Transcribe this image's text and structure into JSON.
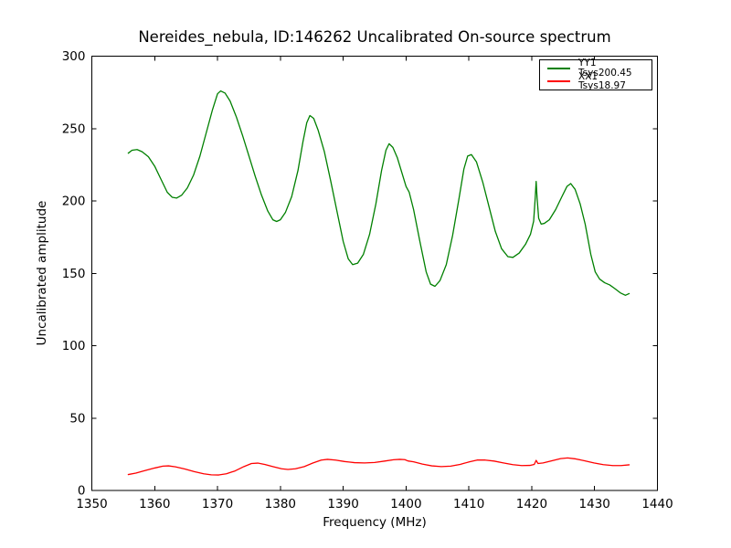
{
  "figure": {
    "background": "#ffffff"
  },
  "chart_data": {
    "type": "line",
    "title": "Nereides_nebula, ID:146262 Uncalibrated On-source spectrum",
    "xlabel": "Frequency (MHz)",
    "ylabel": "Uncalibrated amplitude",
    "xlim": [
      1350,
      1440
    ],
    "ylim": [
      0,
      300
    ],
    "xticks": [
      1350,
      1360,
      1370,
      1380,
      1390,
      1400,
      1410,
      1420,
      1430,
      1440
    ],
    "yticks": [
      0,
      50,
      100,
      150,
      200,
      250,
      300
    ],
    "grid": false,
    "frame_color": "#000000",
    "legend": {
      "position": "upper right",
      "entries": [
        {
          "label": "YY1 Tsys200.45",
          "color": "#008000"
        },
        {
          "label": "XX1 Tsys18.97",
          "color": "#ff0000"
        }
      ]
    },
    "series": [
      {
        "name": "YY1 Tsys200.45",
        "color": "#008000",
        "points": [
          [
            1355.8,
            233
          ],
          [
            1356.4,
            235
          ],
          [
            1357.2,
            235.5
          ],
          [
            1358,
            234
          ],
          [
            1359,
            230.5
          ],
          [
            1360,
            224
          ],
          [
            1361,
            215
          ],
          [
            1362,
            206
          ],
          [
            1362.8,
            202.5
          ],
          [
            1363.5,
            202
          ],
          [
            1364.3,
            204
          ],
          [
            1365.2,
            209
          ],
          [
            1366.2,
            218
          ],
          [
            1367.2,
            231
          ],
          [
            1368.2,
            247
          ],
          [
            1369.2,
            263
          ],
          [
            1370,
            274
          ],
          [
            1370.5,
            276
          ],
          [
            1371.2,
            274.5
          ],
          [
            1372,
            269
          ],
          [
            1373,
            258
          ],
          [
            1374,
            245
          ],
          [
            1375,
            231
          ],
          [
            1376,
            217
          ],
          [
            1377,
            204
          ],
          [
            1378,
            193
          ],
          [
            1378.8,
            187
          ],
          [
            1379.4,
            185.8
          ],
          [
            1380,
            187
          ],
          [
            1380.8,
            192
          ],
          [
            1381.8,
            203
          ],
          [
            1382.8,
            221
          ],
          [
            1383.6,
            241
          ],
          [
            1384.2,
            254
          ],
          [
            1384.7,
            259
          ],
          [
            1385.3,
            257
          ],
          [
            1386,
            249
          ],
          [
            1387,
            234
          ],
          [
            1388,
            214
          ],
          [
            1389,
            193
          ],
          [
            1390,
            172
          ],
          [
            1390.8,
            160
          ],
          [
            1391.5,
            156
          ],
          [
            1392.3,
            157
          ],
          [
            1393.2,
            163
          ],
          [
            1394.2,
            177
          ],
          [
            1395.2,
            198
          ],
          [
            1396.1,
            221
          ],
          [
            1396.8,
            235
          ],
          [
            1397.3,
            239.5
          ],
          [
            1397.9,
            237
          ],
          [
            1398.6,
            230
          ],
          [
            1399.3,
            220
          ],
          [
            1400,
            210
          ],
          [
            1400.5,
            206
          ],
          [
            1401.2,
            194
          ],
          [
            1402.2,
            172
          ],
          [
            1403.2,
            151
          ],
          [
            1403.9,
            142.5
          ],
          [
            1404.6,
            141
          ],
          [
            1405.4,
            145
          ],
          [
            1406.4,
            156
          ],
          [
            1407.4,
            176
          ],
          [
            1408.4,
            201
          ],
          [
            1409.2,
            222
          ],
          [
            1409.8,
            231
          ],
          [
            1410.4,
            232
          ],
          [
            1411.2,
            227
          ],
          [
            1412.2,
            213
          ],
          [
            1413.2,
            196
          ],
          [
            1414.2,
            179
          ],
          [
            1415.2,
            167
          ],
          [
            1416.2,
            161.5
          ],
          [
            1417,
            161
          ],
          [
            1418,
            164
          ],
          [
            1419,
            170
          ],
          [
            1419.8,
            177
          ],
          [
            1420.3,
            186
          ],
          [
            1420.55,
            202
          ],
          [
            1420.7,
            213.5
          ],
          [
            1420.85,
            202
          ],
          [
            1421.1,
            188
          ],
          [
            1421.5,
            184
          ],
          [
            1422,
            184.5
          ],
          [
            1422.8,
            187
          ],
          [
            1423.8,
            194
          ],
          [
            1424.8,
            203
          ],
          [
            1425.6,
            210
          ],
          [
            1426.2,
            212
          ],
          [
            1426.9,
            208
          ],
          [
            1427.7,
            198
          ],
          [
            1428.5,
            184
          ],
          [
            1429.4,
            163
          ],
          [
            1430.1,
            151
          ],
          [
            1430.8,
            146
          ],
          [
            1431.6,
            143.5
          ],
          [
            1432.4,
            142
          ],
          [
            1433.2,
            139.5
          ],
          [
            1434.1,
            136.5
          ],
          [
            1434.9,
            134.8
          ],
          [
            1435.5,
            136
          ]
        ]
      },
      {
        "name": "XX1 Tsys18.97",
        "color": "#ff0000",
        "points": [
          [
            1355.8,
            11
          ],
          [
            1357,
            12
          ],
          [
            1358.5,
            13.8
          ],
          [
            1360,
            15.5
          ],
          [
            1361.3,
            16.8
          ],
          [
            1362.2,
            17
          ],
          [
            1363.3,
            16.3
          ],
          [
            1364.8,
            14.8
          ],
          [
            1366.3,
            13
          ],
          [
            1367.8,
            11.5
          ],
          [
            1369,
            10.8
          ],
          [
            1370.2,
            10.7
          ],
          [
            1371.4,
            11.5
          ],
          [
            1372.8,
            13.5
          ],
          [
            1374.2,
            16.5
          ],
          [
            1375.4,
            18.6
          ],
          [
            1376.4,
            18.9
          ],
          [
            1377.5,
            18
          ],
          [
            1378.8,
            16.5
          ],
          [
            1380.2,
            15
          ],
          [
            1381.2,
            14.5
          ],
          [
            1382.4,
            15
          ],
          [
            1383.8,
            16.5
          ],
          [
            1385.2,
            19
          ],
          [
            1386.5,
            21
          ],
          [
            1387.5,
            21.5
          ],
          [
            1388.8,
            21
          ],
          [
            1390.2,
            20
          ],
          [
            1391.8,
            19.2
          ],
          [
            1393.4,
            19
          ],
          [
            1395,
            19.3
          ],
          [
            1396.6,
            20.3
          ],
          [
            1398,
            21.2
          ],
          [
            1399,
            21.5
          ],
          [
            1399.8,
            21.3
          ],
          [
            1400.3,
            20.4
          ],
          [
            1401.2,
            19.8
          ],
          [
            1402.6,
            18.2
          ],
          [
            1404.1,
            17
          ],
          [
            1405.6,
            16.5
          ],
          [
            1407.1,
            16.8
          ],
          [
            1408.6,
            18
          ],
          [
            1410.1,
            19.8
          ],
          [
            1411.3,
            21
          ],
          [
            1412.6,
            21
          ],
          [
            1414,
            20.3
          ],
          [
            1415.5,
            19
          ],
          [
            1417,
            17.8
          ],
          [
            1418.4,
            17.2
          ],
          [
            1419.7,
            17.3
          ],
          [
            1420.4,
            18
          ],
          [
            1420.7,
            20.8
          ],
          [
            1421,
            18.6
          ],
          [
            1421.8,
            19
          ],
          [
            1423.2,
            20.5
          ],
          [
            1424.6,
            22
          ],
          [
            1425.7,
            22.5
          ],
          [
            1427,
            21.8
          ],
          [
            1428.4,
            20.5
          ],
          [
            1429.9,
            19
          ],
          [
            1431.4,
            17.8
          ],
          [
            1432.9,
            17.2
          ],
          [
            1434.2,
            17.2
          ],
          [
            1435.5,
            17.7
          ]
        ]
      }
    ]
  }
}
